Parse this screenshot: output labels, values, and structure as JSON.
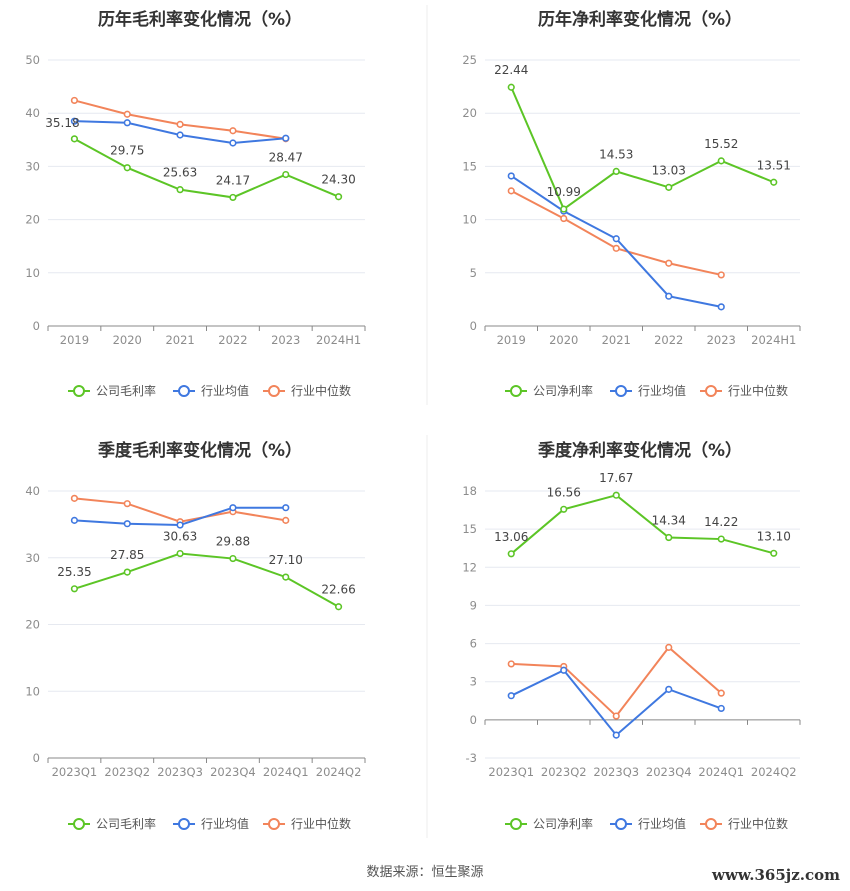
{
  "colors": {
    "company": "#5cc526",
    "avg": "#3f78e0",
    "median": "#f2845a"
  },
  "source": "数据来源：恒生聚源",
  "watermark": "www.365jz.com",
  "chart_data": [
    {
      "type": "line",
      "title": "历年毛利率变化情况（%）",
      "categories": [
        "2019",
        "2020",
        "2021",
        "2022",
        "2023",
        "2024H1"
      ],
      "ylim": [
        0,
        50
      ],
      "yticks": [
        0,
        10,
        20,
        30,
        40,
        50
      ],
      "grid": true,
      "legend": "bottom",
      "series": [
        {
          "name": "公司毛利率",
          "key": "company",
          "values": [
            35.18,
            29.75,
            25.63,
            24.17,
            28.47,
            24.3
          ],
          "labels": [
            "35.18",
            "29.75",
            "25.63",
            "24.17",
            "28.47",
            "24.30"
          ]
        },
        {
          "name": "行业均值",
          "key": "avg",
          "values": [
            38.5,
            38.2,
            35.9,
            34.4,
            35.3,
            null
          ]
        },
        {
          "name": "行业中位数",
          "key": "median",
          "values": [
            42.4,
            39.8,
            37.9,
            36.7,
            35.2,
            null
          ]
        }
      ]
    },
    {
      "type": "line",
      "title": "历年净利率变化情况（%）",
      "categories": [
        "2019",
        "2020",
        "2021",
        "2022",
        "2023",
        "2024H1"
      ],
      "ylim": [
        0,
        25
      ],
      "yticks": [
        0,
        5,
        10,
        15,
        20,
        25
      ],
      "grid": true,
      "legend": "bottom",
      "series": [
        {
          "name": "公司净利率",
          "key": "company",
          "values": [
            22.44,
            10.99,
            14.53,
            13.03,
            15.52,
            13.51
          ],
          "labels": [
            "22.44",
            "10.99",
            "14.53",
            "13.03",
            "15.52",
            "13.51"
          ]
        },
        {
          "name": "行业均值",
          "key": "avg",
          "values": [
            14.1,
            10.8,
            8.2,
            2.8,
            1.8,
            null
          ]
        },
        {
          "name": "行业中位数",
          "key": "median",
          "values": [
            12.7,
            10.1,
            7.3,
            5.9,
            4.8,
            null
          ]
        }
      ]
    },
    {
      "type": "line",
      "title": "季度毛利率变化情况（%）",
      "categories": [
        "2023Q1",
        "2023Q2",
        "2023Q3",
        "2023Q4",
        "2024Q1",
        "2024Q2"
      ],
      "ylim": [
        0,
        40
      ],
      "yticks": [
        0,
        10,
        20,
        30,
        40
      ],
      "grid": true,
      "legend": "bottom",
      "series": [
        {
          "name": "公司毛利率",
          "key": "company",
          "values": [
            25.35,
            27.85,
            30.63,
            29.88,
            27.1,
            22.66
          ],
          "labels": [
            "25.35",
            "27.85",
            "30.63",
            "29.88",
            "27.10",
            "22.66"
          ]
        },
        {
          "name": "行业均值",
          "key": "avg",
          "values": [
            35.6,
            35.1,
            34.9,
            37.5,
            37.5,
            null
          ]
        },
        {
          "name": "行业中位数",
          "key": "median",
          "values": [
            38.9,
            38.1,
            35.4,
            36.9,
            35.6,
            null
          ]
        }
      ]
    },
    {
      "type": "line",
      "title": "季度净利率变化情况（%）",
      "categories": [
        "2023Q1",
        "2023Q2",
        "2023Q3",
        "2023Q4",
        "2024Q1",
        "2024Q2"
      ],
      "ylim": [
        -3,
        18
      ],
      "yticks": [
        -3,
        0,
        3,
        6,
        9,
        12,
        15,
        18
      ],
      "grid": true,
      "legend": "bottom",
      "series": [
        {
          "name": "公司净利率",
          "key": "company",
          "values": [
            13.06,
            16.56,
            17.67,
            14.34,
            14.22,
            13.1
          ],
          "labels": [
            "13.06",
            "16.56",
            "17.67",
            "14.34",
            "14.22",
            "13.10"
          ]
        },
        {
          "name": "行业均值",
          "key": "avg",
          "values": [
            1.9,
            3.9,
            -1.2,
            2.4,
            0.9,
            null
          ]
        },
        {
          "name": "行业中位数",
          "key": "median",
          "values": [
            4.4,
            4.2,
            0.3,
            5.7,
            2.1,
            null
          ]
        }
      ]
    }
  ]
}
